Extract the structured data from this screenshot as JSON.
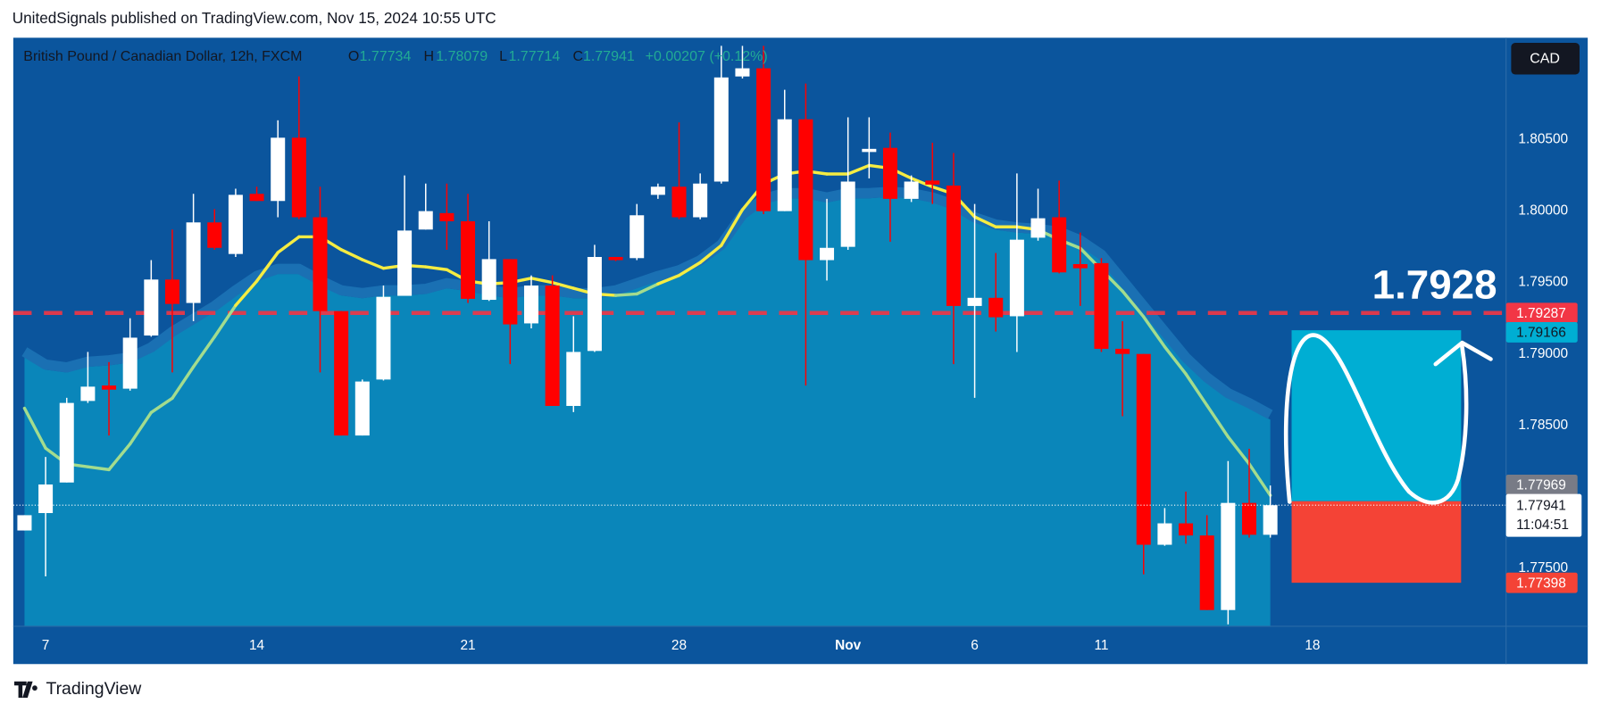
{
  "header": {
    "publisher": "UnitedSignals published on TradingView.com, Nov 15, 2024 10:55 UTC"
  },
  "footer": {
    "brand": "TradingView"
  },
  "chart_data": {
    "type": "candlestick",
    "title": "British Pound / Canadian Dollar, 12h, FXCM",
    "ohlc_labels": [
      "O",
      "H",
      "L",
      "C"
    ],
    "change": "+0.00207 (+0.12%)",
    "currency": "CAD",
    "countdown": "11:04:51",
    "annotation": "1.7928",
    "categories": [
      null,
      "7",
      null,
      null,
      null,
      null,
      null,
      null,
      null,
      null,
      null,
      "14",
      null,
      null,
      null,
      null,
      null,
      null,
      null,
      null,
      null,
      "21",
      null,
      null,
      null,
      null,
      null,
      null,
      null,
      null,
      null,
      "28",
      null,
      null,
      null,
      null,
      null,
      null,
      null,
      "Nov",
      null,
      null,
      null,
      null,
      null,
      "6",
      null,
      null,
      null,
      null,
      null,
      "11",
      null,
      null,
      null,
      null,
      null,
      null,
      null,
      null,
      null,
      "18"
    ],
    "open": [
      1.77764,
      1.77886,
      1.781,
      1.78671,
      1.78779,
      1.78757,
      1.79129,
      1.79521,
      1.79357,
      1.79921,
      1.797,
      1.80121,
      1.80071,
      1.80514,
      1.79957,
      1.793,
      1.78429,
      1.78821,
      1.79407,
      1.79871,
      1.79986,
      1.79929,
      1.79379,
      1.79664,
      1.79214,
      1.79479,
      1.78636,
      1.79021,
      1.79679,
      1.79671,
      1.80114,
      1.80171,
      1.79957,
      1.80207,
      1.80943,
      1.81,
      1.8,
      1.80643,
      1.79657,
      1.7975,
      1.80414,
      1.80443,
      1.80086,
      1.80214,
      1.80179,
      1.79336,
      1.79393,
      1.79264,
      1.79814,
      1.79957,
      1.79629,
      1.79636,
      1.79036,
      1.79,
      1.77664,
      1.77814,
      1.77729,
      1.77207,
      1.77957,
      1.77734,
      null,
      null
    ],
    "high": [
      1.77871,
      1.78279,
      1.78693,
      1.79014,
      1.78943,
      1.7925,
      1.79657,
      1.79871,
      1.80121,
      1.80014,
      1.80157,
      1.80171,
      1.80636,
      1.80943,
      1.80171,
      1.793,
      1.78821,
      1.79479,
      1.8025,
      1.80193,
      1.80193,
      1.80121,
      1.79929,
      1.79664,
      1.7955,
      1.7955,
      1.79264,
      1.79764,
      1.79679,
      1.8005,
      1.80193,
      1.80621,
      1.80264,
      1.81157,
      1.81157,
      1.81157,
      1.8085,
      1.80893,
      1.80086,
      1.80657,
      1.80657,
      1.8055,
      1.8025,
      1.80479,
      1.80407,
      1.8005,
      1.79707,
      1.80264,
      1.80157,
      1.80214,
      1.7985,
      1.79671,
      1.79229,
      1.79,
      1.77921,
      1.78036,
      1.77871,
      1.7825,
      1.78336,
      1.78079,
      null,
      null
    ],
    "low": [
      1.77764,
      1.77443,
      1.781,
      1.78657,
      1.78429,
      1.78743,
      1.79121,
      1.78871,
      1.79229,
      1.79729,
      1.79679,
      1.80071,
      1.79957,
      1.79943,
      1.78871,
      1.78429,
      1.78429,
      1.78814,
      1.79407,
      1.79871,
      1.79729,
      1.79357,
      1.79371,
      1.78929,
      1.79179,
      1.78636,
      1.78593,
      1.79014,
      1.7965,
      1.79657,
      1.80086,
      1.79943,
      1.79943,
      1.80193,
      1.80929,
      1.79979,
      1.8,
      1.78779,
      1.79514,
      1.79729,
      1.80229,
      1.79786,
      1.80064,
      1.8005,
      1.78929,
      1.78693,
      1.79157,
      1.79014,
      1.79793,
      1.79564,
      1.79336,
      1.79014,
      1.78564,
      1.77457,
      1.77657,
      1.77671,
      1.77207,
      1.77107,
      1.77714,
      1.77714,
      null,
      null
    ],
    "close": [
      1.77871,
      1.78086,
      1.78657,
      1.78771,
      1.7875,
      1.79114,
      1.79521,
      1.7935,
      1.79921,
      1.79743,
      1.80114,
      1.80071,
      1.80514,
      1.79957,
      1.793,
      1.78429,
      1.78807,
      1.794,
      1.79864,
      1.8,
      1.79929,
      1.79386,
      1.79664,
      1.79207,
      1.79479,
      1.78636,
      1.79014,
      1.79679,
      1.79657,
      1.79971,
      1.80171,
      1.79957,
      1.80193,
      1.80936,
      1.81,
      1.8,
      1.80643,
      1.79657,
      1.79743,
      1.80207,
      1.80436,
      1.80086,
      1.80207,
      1.80186,
      1.79336,
      1.79393,
      1.79257,
      1.798,
      1.7995,
      1.79571,
      1.796,
      1.79036,
      1.79,
      1.77664,
      1.77814,
      1.77729,
      1.77207,
      1.77957,
      1.77734,
      1.77941,
      null,
      null
    ],
    "up_color": "#ffffff",
    "down_color": "#ff0000",
    "band": {
      "color": "#0a86ba",
      "edge_color": "#1a70b3",
      "values": [
        1.7898,
        1.7889,
        1.7887,
        1.7891,
        1.7892,
        1.7894,
        1.7901,
        1.7912,
        1.7921,
        1.793,
        1.7941,
        1.7951,
        1.7956,
        1.7956,
        1.7948,
        1.7941,
        1.7939,
        1.7941,
        1.7941,
        1.7942,
        1.7946,
        1.7944,
        1.7941,
        1.7939,
        1.7941,
        1.7941,
        1.7939,
        1.7939,
        1.7941,
        1.7946,
        1.7951,
        1.7955,
        1.7962,
        1.7973,
        1.7994,
        1.8005,
        1.8009,
        1.8009,
        1.8006,
        1.8009,
        1.8009,
        1.801,
        1.8009,
        1.8006,
        1.8001,
        1.7992,
        1.7987,
        1.7985,
        1.7984,
        1.7982,
        1.7976,
        1.7966,
        1.7948,
        1.793,
        1.7912,
        1.7894,
        1.788,
        1.7869,
        1.7862,
        1.7854,
        null,
        null
      ]
    },
    "ema": {
      "color": "#f5ec42",
      "below_color": "#a3dc8e",
      "values": [
        1.7862,
        1.7834,
        1.7823,
        1.7821,
        1.7819,
        1.7837,
        1.7859,
        1.7869,
        1.7891,
        1.7912,
        1.7934,
        1.7951,
        1.7971,
        1.7982,
        1.7982,
        1.7973,
        1.7966,
        1.796,
        1.7962,
        1.7961,
        1.7959,
        1.7951,
        1.7949,
        1.795,
        1.7953,
        1.795,
        1.7946,
        1.7942,
        1.7941,
        1.7942,
        1.7949,
        1.7955,
        1.7964,
        1.7976,
        1.8001,
        1.8019,
        1.8026,
        1.8028,
        1.8026,
        1.8026,
        1.8032,
        1.803,
        1.8023,
        1.8017,
        1.8012,
        1.7996,
        1.7989,
        1.7989,
        1.7987,
        1.798,
        1.7974,
        1.7959,
        1.7944,
        1.7926,
        1.7905,
        1.7886,
        1.7864,
        1.7842,
        1.7823,
        1.7801,
        null,
        null
      ]
    },
    "hline": {
      "value": 1.79287,
      "color": "#f23645"
    },
    "position": {
      "target": 1.79166,
      "entry": 1.77969,
      "stop": 1.77398,
      "profit_color": "#00aed3",
      "loss_color": "#f44336"
    },
    "ylim": [
      1.77093,
      1.81214
    ],
    "yticks": [
      {
        "value": 1.775,
        "label": "1.77500"
      },
      {
        "value": 1.785,
        "label": "1.78500"
      },
      {
        "value": 1.79,
        "label": "1.79000"
      },
      {
        "value": 1.795,
        "label": "1.79500"
      },
      {
        "value": 1.8,
        "label": "1.80000"
      },
      {
        "value": 1.805,
        "label": "1.80500"
      }
    ]
  }
}
